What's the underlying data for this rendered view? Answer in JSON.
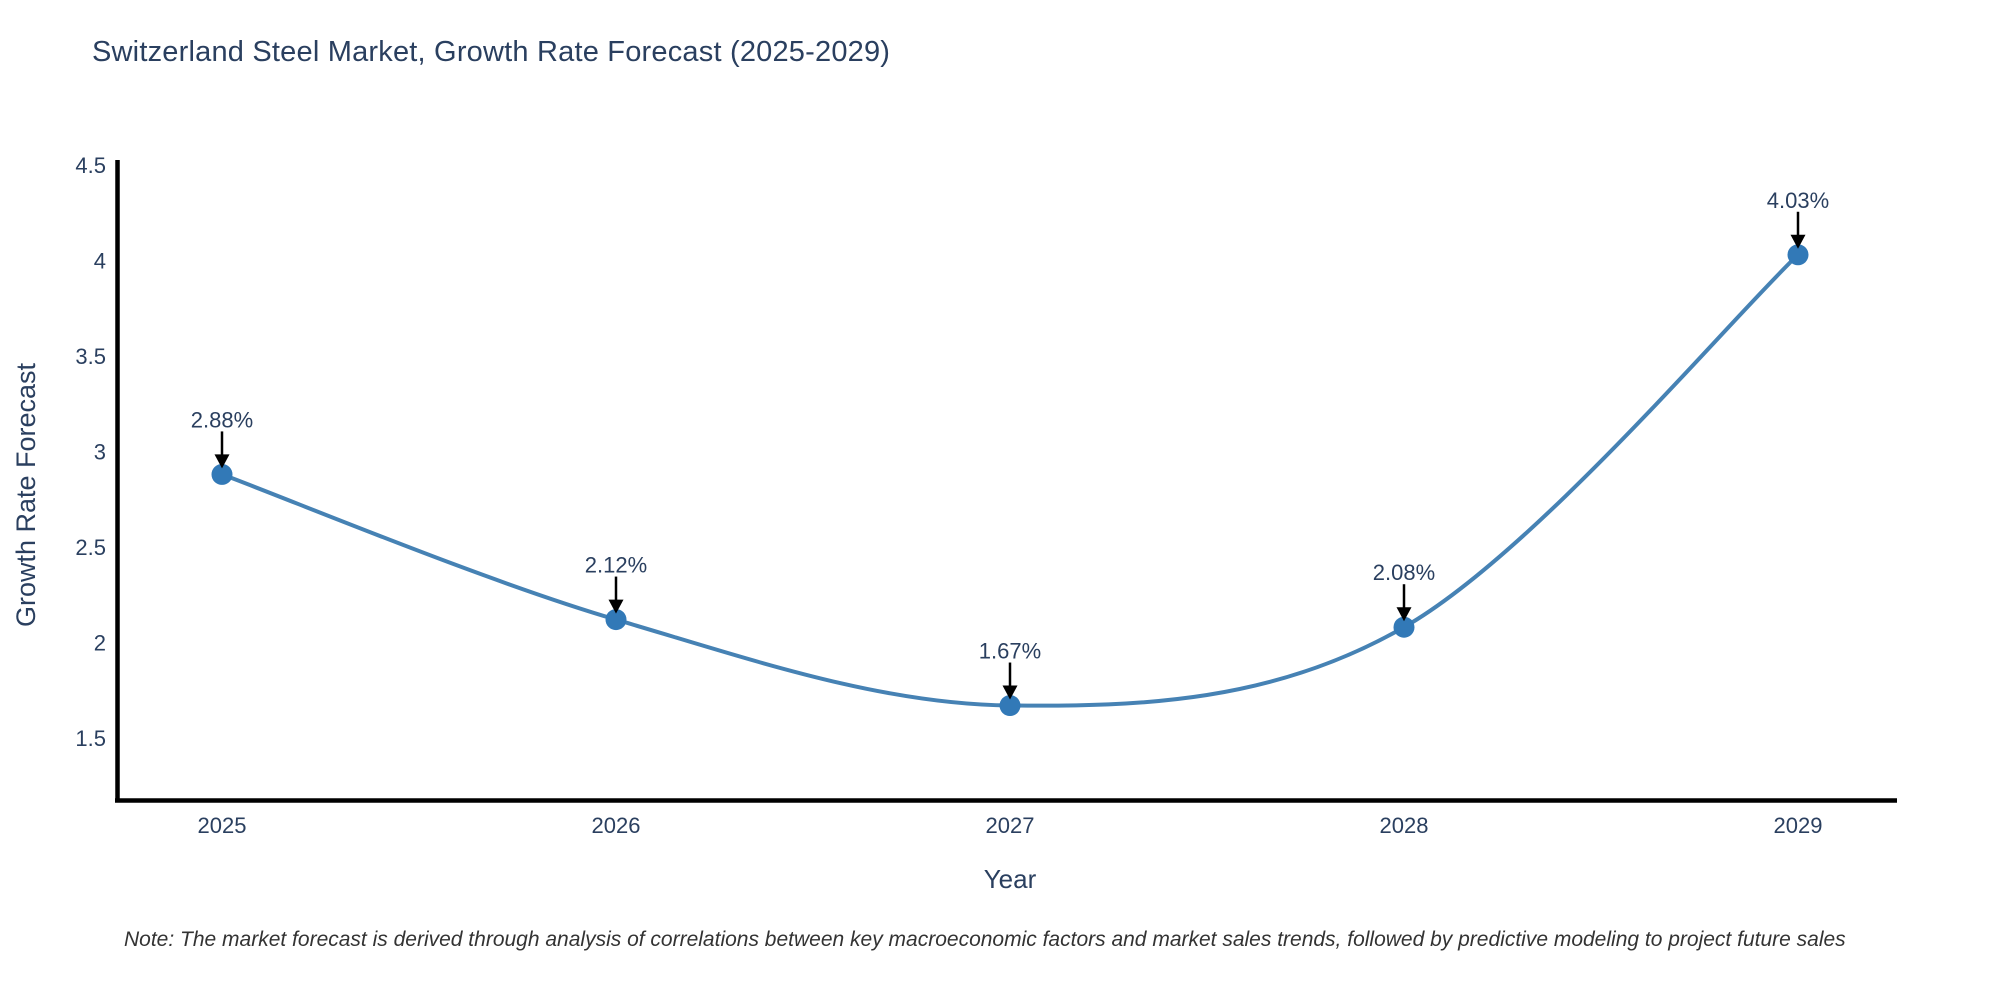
{
  "chart_data": {
    "type": "line",
    "title": "Switzerland Steel Market, Growth Rate Forecast (2025-2029)",
    "xlabel": "Year",
    "ylabel": "Growth Rate Forecast",
    "categories": [
      "2025",
      "2026",
      "2027",
      "2028",
      "2029"
    ],
    "series": [
      {
        "name": "Growth Rate Forecast",
        "values": [
          2.88,
          2.12,
          1.67,
          2.08,
          4.03
        ]
      }
    ],
    "point_labels": [
      "2.88%",
      "2.12%",
      "1.67%",
      "2.08%",
      "4.03%"
    ],
    "y_ticks": [
      1.5,
      2,
      2.5,
      3,
      3.5,
      4,
      4.5
    ],
    "y_tick_labels": [
      "1.5",
      "2",
      "2.5",
      "3",
      "3.5",
      "4",
      "4.5"
    ],
    "ylim": [
      1.16,
      4.53
    ],
    "grid": false,
    "legend": "none",
    "line_shape": "spline",
    "annotation_style": "value label with downward black arrow to marker",
    "note": "Note: The market forecast is derived through analysis of correlations between key macroeconomic factors and market sales trends, followed by predictive modeling to project future sales",
    "colors": {
      "line": "#4682b4",
      "marker": "#3279b7",
      "text": "#2a3f5f",
      "axis": "#000000",
      "arrow": "#000000",
      "note_text": "#333333",
      "background": "#ffffff"
    }
  }
}
